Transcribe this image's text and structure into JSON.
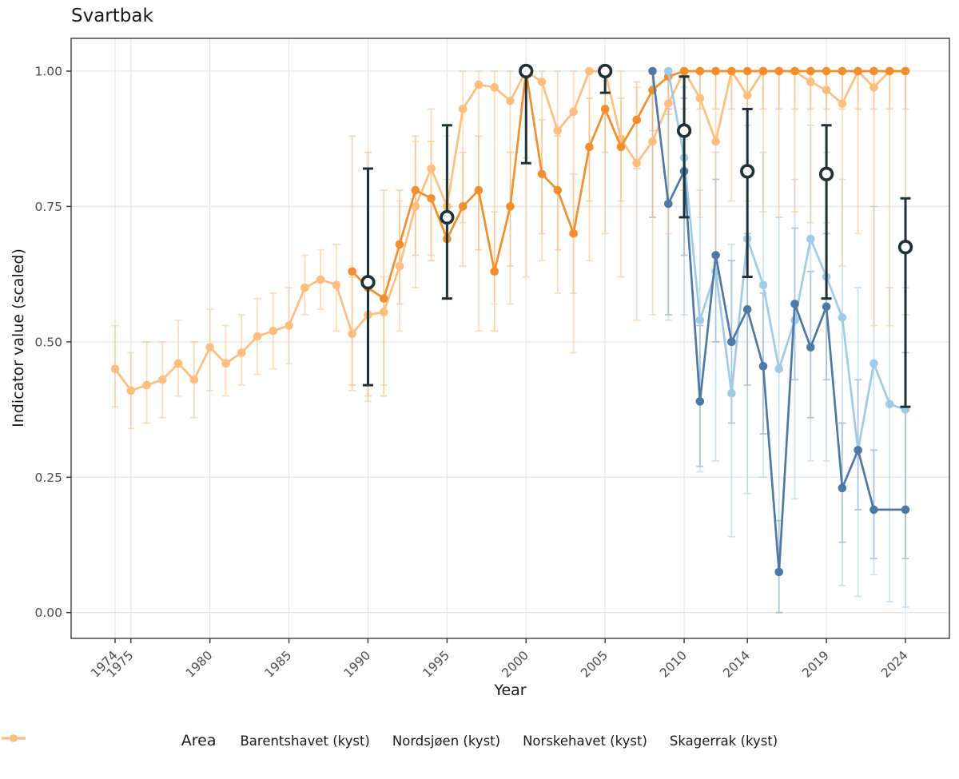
{
  "chart_data": {
    "type": "line",
    "title": "Svartbak",
    "xlabel": "Year",
    "ylabel": "Indicator value (scaled)",
    "legend_title": "Area",
    "legend_position": "bottom",
    "grid": true,
    "x_ticks": [
      1974,
      1975,
      1980,
      1985,
      1990,
      1995,
      2000,
      2005,
      2010,
      2014,
      2019,
      2024
    ],
    "y_tick_labels": [
      "0.00",
      "0.25",
      "0.50",
      "0.75",
      "1.00"
    ],
    "y_ticks": [
      0.0,
      0.25,
      0.5,
      0.75,
      1.0
    ],
    "xlim": [
      1971.3,
      2026.8
    ],
    "ylim": [
      -0.05,
      1.06
    ],
    "colors": {
      "barentshavet": "#4E79A7",
      "nordsjoen": "#A0CBE8",
      "norskehavet": "#F28E2B",
      "skagerrak": "#FFBE7D",
      "black_marker": "#1C3138",
      "gridline": "#E6E6E6",
      "panel_border": "#3D3D3D",
      "tick_label": "#4D4D4D"
    },
    "series": [
      {
        "name": "Barentshavet (kyst)",
        "key": "barentshavet",
        "color": "#4E79A7",
        "bar_opacity": 0.45,
        "years": [
          2008,
          2009,
          2010,
          2011,
          2012,
          2013,
          2014,
          2015,
          2016,
          2017,
          2018,
          2019,
          2020,
          2021,
          2022,
          2024
        ],
        "values": [
          1.0,
          0.755,
          0.815,
          0.39,
          0.66,
          0.5,
          0.56,
          0.455,
          0.075,
          0.57,
          0.49,
          0.565,
          0.23,
          0.3,
          0.19,
          0.19
        ],
        "err_lo": [
          0.73,
          0.55,
          0.66,
          0.27,
          0.5,
          0.35,
          0.42,
          0.33,
          0.0,
          0.43,
          0.36,
          0.43,
          0.13,
          0.19,
          0.1,
          0.1
        ],
        "err_hi": [
          1.0,
          0.93,
          0.95,
          0.53,
          0.8,
          0.65,
          0.7,
          0.59,
          0.17,
          0.71,
          0.63,
          0.7,
          0.35,
          0.43,
          0.3,
          0.48
        ]
      },
      {
        "name": "Nordsjøen (kyst)",
        "key": "nordsjoen",
        "color": "#A0CBE8",
        "bar_opacity": 0.55,
        "years": [
          2009,
          2010,
          2011,
          2012,
          2013,
          2014,
          2015,
          2016,
          2017,
          2018,
          2019,
          2020,
          2021,
          2022,
          2023,
          2024
        ],
        "values": [
          1.0,
          0.84,
          0.54,
          0.63,
          0.405,
          0.69,
          0.605,
          0.45,
          0.54,
          0.69,
          0.62,
          0.545,
          0.3,
          0.46,
          0.385,
          0.375
        ],
        "err_lo": [
          0.54,
          0.55,
          0.26,
          0.28,
          0.14,
          0.22,
          0.25,
          0.17,
          0.21,
          0.28,
          0.28,
          0.05,
          0.03,
          0.07,
          0.02,
          0.01
        ],
        "err_hi": [
          1.0,
          0.97,
          0.78,
          0.85,
          0.68,
          0.9,
          0.85,
          0.73,
          0.8,
          0.9,
          0.85,
          0.8,
          0.6,
          0.75,
          0.6,
          0.6
        ]
      },
      {
        "name": "Norskehavet (kyst)",
        "key": "norskehavet",
        "color": "#F28E2B",
        "bar_opacity": 0.38,
        "years": [
          1989,
          1990,
          1991,
          1992,
          1993,
          1994,
          1995,
          1996,
          1997,
          1998,
          1999,
          2000,
          2001,
          2002,
          2003,
          2004,
          2005,
          2006,
          2007,
          2008,
          2009,
          2010,
          2011,
          2012,
          2013,
          2014,
          2015,
          2016,
          2017,
          2018,
          2019,
          2020,
          2021,
          2022,
          2023,
          2024
        ],
        "values": [
          0.63,
          0.6,
          0.58,
          0.68,
          0.78,
          0.765,
          0.69,
          0.75,
          0.78,
          0.63,
          0.75,
          1.0,
          0.81,
          0.78,
          0.7,
          0.86,
          0.93,
          0.86,
          0.91,
          0.965,
          0.99,
          1.0,
          1.0,
          1.0,
          1.0,
          1.0,
          1.0,
          1.0,
          1.0,
          1.0,
          1.0,
          1.0,
          1.0,
          1.0,
          1.0,
          1.0
        ],
        "err_lo": [
          0.42,
          0.4,
          0.4,
          0.57,
          0.66,
          0.65,
          0.58,
          0.64,
          0.67,
          0.52,
          0.64,
          0.84,
          0.7,
          0.67,
          0.59,
          0.76,
          0.85,
          0.76,
          0.82,
          0.89,
          0.92,
          0.93,
          0.93,
          0.93,
          0.93,
          0.93,
          0.93,
          0.93,
          0.93,
          0.93,
          0.93,
          0.93,
          0.93,
          0.93,
          0.93,
          0.93
        ],
        "err_hi": [
          0.88,
          0.85,
          0.78,
          0.78,
          0.88,
          0.87,
          0.8,
          0.85,
          0.88,
          0.74,
          0.85,
          1.0,
          0.91,
          0.88,
          0.81,
          0.95,
          1.0,
          0.95,
          0.98,
          1.0,
          1.0,
          1.0,
          1.0,
          1.0,
          1.0,
          1.0,
          1.0,
          1.0,
          1.0,
          1.0,
          1.0,
          1.0,
          1.0,
          1.0,
          1.0,
          1.0
        ]
      },
      {
        "name": "Skagerrak (kyst)",
        "key": "skagerrak",
        "color": "#FFBE7D",
        "bar_opacity": 0.55,
        "years": [
          1974,
          1975,
          1976,
          1977,
          1978,
          1979,
          1980,
          1981,
          1982,
          1983,
          1984,
          1985,
          1986,
          1987,
          1988,
          1989,
          1990,
          1991,
          1992,
          1993,
          1994,
          1995,
          1996,
          1997,
          1998,
          1999,
          2000,
          2001,
          2002,
          2003,
          2004,
          2005,
          2006,
          2007,
          2008,
          2009,
          2010,
          2011,
          2012,
          2013,
          2014,
          2015,
          2016,
          2017,
          2018,
          2019,
          2020,
          2021,
          2022,
          2023,
          2024
        ],
        "values": [
          0.45,
          0.41,
          0.42,
          0.43,
          0.46,
          0.43,
          0.49,
          0.46,
          0.48,
          0.51,
          0.52,
          0.53,
          0.6,
          0.615,
          0.605,
          0.515,
          0.55,
          0.555,
          0.64,
          0.75,
          0.82,
          0.75,
          0.93,
          0.975,
          0.97,
          0.945,
          1.0,
          0.98,
          0.89,
          0.925,
          1.0,
          1.0,
          0.875,
          0.83,
          0.87,
          0.94,
          1.0,
          0.95,
          0.87,
          1.0,
          0.955,
          1.0,
          1.0,
          1.0,
          0.98,
          0.965,
          0.94,
          1.0,
          0.97,
          1.0,
          1.0
        ],
        "err_lo": [
          0.38,
          0.34,
          0.35,
          0.36,
          0.4,
          0.36,
          0.41,
          0.4,
          0.42,
          0.44,
          0.45,
          0.46,
          0.55,
          0.56,
          0.52,
          0.41,
          0.39,
          0.42,
          0.52,
          0.6,
          0.66,
          0.58,
          0.72,
          0.52,
          0.57,
          0.57,
          0.62,
          0.65,
          0.59,
          0.48,
          0.65,
          0.7,
          0.62,
          0.54,
          0.55,
          0.7,
          0.78,
          0.73,
          0.64,
          0.76,
          0.76,
          0.74,
          0.73,
          0.74,
          0.72,
          0.72,
          0.64,
          0.7,
          0.53,
          0.53,
          0.55
        ],
        "err_hi": [
          0.53,
          0.48,
          0.5,
          0.5,
          0.54,
          0.5,
          0.56,
          0.53,
          0.55,
          0.58,
          0.59,
          0.6,
          0.66,
          0.67,
          0.68,
          0.62,
          0.6,
          0.62,
          0.76,
          0.87,
          0.93,
          0.88,
          1.0,
          1.0,
          1.0,
          1.0,
          1.0,
          1.0,
          1.0,
          1.0,
          1.0,
          1.0,
          1.0,
          0.97,
          1.0,
          1.0,
          1.0,
          1.0,
          1.0,
          1.0,
          1.0,
          1.0,
          1.0,
          1.0,
          1.0,
          1.0,
          1.0,
          1.0,
          1.0,
          1.0,
          1.0
        ]
      }
    ],
    "black_points": {
      "marker": "open-circle",
      "color": "#1C3138",
      "years": [
        1990,
        1995,
        2000,
        2005,
        2010,
        2014,
        2019,
        2024
      ],
      "values": [
        0.61,
        0.73,
        1.0,
        1.0,
        0.89,
        0.815,
        0.81,
        0.675
      ],
      "err_lo": [
        0.42,
        0.58,
        0.83,
        0.96,
        0.73,
        0.62,
        0.58,
        0.38
      ],
      "err_hi": [
        0.82,
        0.9,
        1.0,
        1.0,
        0.99,
        0.93,
        0.9,
        0.765
      ]
    }
  }
}
